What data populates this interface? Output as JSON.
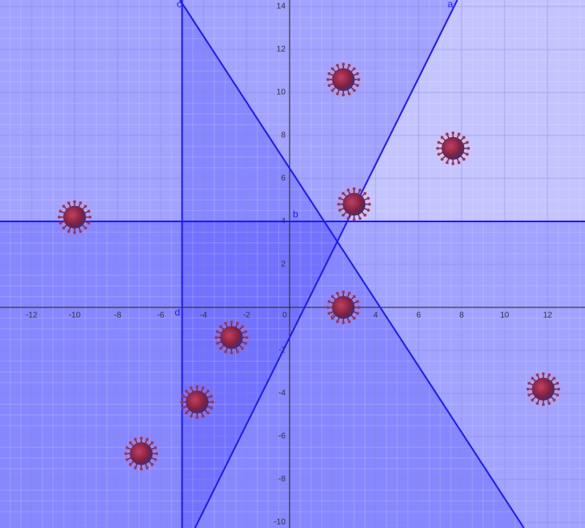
{
  "chart_data": {
    "type": "scatter",
    "xlim": [
      -13.47,
      13.74
    ],
    "ylim": [
      -10.26,
      14.3
    ],
    "xticks": [
      -12,
      -10,
      -8,
      -6,
      -4,
      -2,
      0,
      2,
      4,
      6,
      8,
      10,
      12
    ],
    "yticks": [
      -10,
      -8,
      -6,
      -4,
      -2,
      2,
      4,
      6,
      8,
      10,
      12,
      14
    ],
    "grid": true,
    "lines": [
      {
        "label": "a",
        "points": [
          [
            -4.4,
            -10.26
          ],
          [
            7.8,
            14.3
          ]
        ]
      },
      {
        "label": "b",
        "points": [
          [
            -13.47,
            4
          ],
          [
            13.74,
            4
          ]
        ]
      },
      {
        "label": "c",
        "points": [
          [
            -5.1,
            14.3
          ],
          [
            10.9,
            -10.26
          ]
        ]
      },
      {
        "label": "d",
        "points": [
          [
            -5,
            14.3
          ],
          [
            -5,
            -10.26
          ]
        ]
      }
    ],
    "x": [
      -10,
      2.5,
      7.6,
      3,
      2.5,
      -2.7,
      -4.3,
      -6.9,
      11.8
    ],
    "values": [
      4.2,
      10.6,
      7.4,
      4.8,
      0,
      -1.4,
      -4.4,
      -6.8,
      -3.8
    ]
  }
}
